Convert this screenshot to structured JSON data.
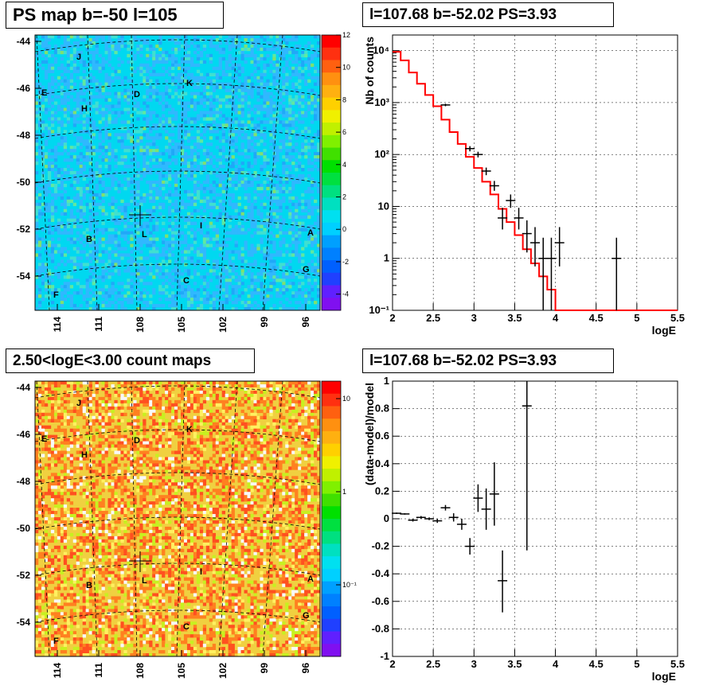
{
  "panels": {
    "tl": {
      "title": "PS map b=-50 l=105"
    },
    "tr": {
      "title": "l=107.68 b=-52.02 PS=3.93"
    },
    "bl": {
      "title": "2.50<logE<3.00 count maps"
    },
    "br": {
      "title": "l=107.68 b=-52.02 PS=3.93"
    }
  },
  "chart_data": [
    {
      "type": "heatmap",
      "title": "PS map b=-50 l=105",
      "xticks": [
        "114",
        "111",
        "108",
        "105",
        "102",
        "99",
        "96"
      ],
      "yticks": [
        "-44",
        "-46",
        "-48",
        "-50",
        "-52",
        "-54"
      ],
      "colorbar_ticks": [
        "12",
        "10",
        "8",
        "6",
        "4",
        "2",
        "0",
        "-2",
        "-4"
      ],
      "colorbar_range": [
        -5,
        12
      ],
      "source_labels": [
        "J",
        "E",
        "D",
        "K",
        "H",
        "B",
        "L",
        "I",
        "A",
        "G",
        "C",
        "F"
      ],
      "colors": {
        "background": "#00e0f0",
        "accent": "#40c0ff"
      }
    },
    {
      "type": "line",
      "title": "l=107.68 b=-52.02 PS=3.93",
      "xlabel": "logE",
      "ylabel": "Nb of counts",
      "xlim": [
        2,
        5.5
      ],
      "ylim": [
        0.1,
        20000
      ],
      "log_y": true,
      "xticks": [
        "2",
        "2.5",
        "3",
        "3.5",
        "4",
        "4.5",
        "5",
        "5.5"
      ],
      "yticks": [
        "10⁻¹",
        "1",
        "10",
        "10²",
        "10³",
        "10⁴"
      ],
      "grid": true,
      "series": [
        {
          "style": "histogram",
          "color": "#ff0000",
          "x": [
            2.0,
            2.1,
            2.2,
            2.3,
            2.4,
            2.5,
            2.6,
            2.7,
            2.8,
            2.9,
            3.0,
            3.1,
            3.2,
            3.3,
            3.4,
            3.5,
            3.6,
            3.7,
            3.8,
            3.9,
            4.0,
            4.1,
            4.2,
            4.3,
            4.4,
            4.5,
            4.6,
            4.7,
            4.8,
            4.9,
            5.0,
            5.1,
            5.2,
            5.3,
            5.4
          ],
          "values": [
            9500,
            6500,
            3800,
            2300,
            1400,
            850,
            470,
            270,
            160,
            90,
            55,
            30,
            17,
            9,
            5,
            2.8,
            1.5,
            0.8,
            0.45,
            0.25,
            0.1,
            0.1,
            0.1,
            0.1,
            0.1,
            0.1,
            0.1,
            0.1,
            0.1,
            0.1,
            0.1,
            0.1,
            0.1,
            0.1,
            0.1
          ]
        },
        {
          "style": "errorbars",
          "color": "#000000",
          "points": [
            {
              "x": 2.65,
              "y": 900,
              "lo": 850,
              "hi": 950
            },
            {
              "x": 2.95,
              "y": 130,
              "lo": 115,
              "hi": 145
            },
            {
              "x": 3.05,
              "y": 100,
              "lo": 88,
              "hi": 113
            },
            {
              "x": 3.15,
              "y": 48,
              "lo": 40,
              "hi": 56
            },
            {
              "x": 3.25,
              "y": 25,
              "lo": 20,
              "hi": 31
            },
            {
              "x": 3.35,
              "y": 6,
              "lo": 3.6,
              "hi": 9.4
            },
            {
              "x": 3.45,
              "y": 13,
              "lo": 9.4,
              "hi": 17
            },
            {
              "x": 3.55,
              "y": 6,
              "lo": 3.6,
              "hi": 9.4
            },
            {
              "x": 3.65,
              "y": 3,
              "lo": 1.3,
              "hi": 5.4
            },
            {
              "x": 3.75,
              "y": 2,
              "lo": 0.7,
              "hi": 4.0
            },
            {
              "x": 3.85,
              "y": 1,
              "lo": 0.1,
              "hi": 2.5
            },
            {
              "x": 3.95,
              "y": 1,
              "lo": 0.1,
              "hi": 2.5
            },
            {
              "x": 4.05,
              "y": 2,
              "lo": 0.7,
              "hi": 4.0
            },
            {
              "x": 4.75,
              "y": 1,
              "lo": 0.1,
              "hi": 2.5
            }
          ]
        }
      ]
    },
    {
      "type": "heatmap",
      "title": "2.50<logE<3.00 count maps",
      "xticks": [
        "114",
        "111",
        "108",
        "105",
        "102",
        "99",
        "96"
      ],
      "yticks": [
        "-44",
        "-46",
        "-48",
        "-50",
        "-52",
        "-54"
      ],
      "colorbar_ticks": [
        "10",
        "1",
        "10⁻¹"
      ],
      "colorbar_log": true,
      "source_labels": [
        "J",
        "E",
        "D",
        "K",
        "H",
        "B",
        "L",
        "I",
        "A",
        "G",
        "C",
        "F"
      ],
      "colors": {
        "background": "#f0d040",
        "accent": "#ff5020"
      }
    },
    {
      "type": "scatter",
      "title": "l=107.68 b=-52.02 PS=3.93",
      "xlabel": "logE",
      "ylabel": "(data-model)/model",
      "xlim": [
        2,
        5.5
      ],
      "ylim": [
        -1,
        1
      ],
      "xticks": [
        "2",
        "2.5",
        "3",
        "3.5",
        "4",
        "4.5",
        "5",
        "5.5"
      ],
      "yticks": [
        "-1",
        "-0.8",
        "-0.6",
        "-0.4",
        "-0.2",
        "0",
        "0.2",
        "0.4",
        "0.6",
        "0.8",
        "1"
      ],
      "grid": true,
      "points": [
        {
          "x": 2.05,
          "y": 0.04,
          "lo": 0.035,
          "hi": 0.045
        },
        {
          "x": 2.15,
          "y": 0.035,
          "lo": 0.03,
          "hi": 0.04
        },
        {
          "x": 2.25,
          "y": -0.01,
          "lo": -0.02,
          "hi": 0.0
        },
        {
          "x": 2.35,
          "y": 0.01,
          "lo": 0.0,
          "hi": 0.02
        },
        {
          "x": 2.45,
          "y": 0.0,
          "lo": -0.01,
          "hi": 0.01
        },
        {
          "x": 2.55,
          "y": -0.015,
          "lo": -0.03,
          "hi": 0.0
        },
        {
          "x": 2.65,
          "y": 0.08,
          "lo": 0.06,
          "hi": 0.1
        },
        {
          "x": 2.75,
          "y": 0.01,
          "lo": -0.02,
          "hi": 0.04
        },
        {
          "x": 2.85,
          "y": -0.04,
          "lo": -0.08,
          "hi": 0.0
        },
        {
          "x": 2.95,
          "y": -0.2,
          "lo": -0.26,
          "hi": -0.14
        },
        {
          "x": 3.05,
          "y": 0.15,
          "lo": 0.05,
          "hi": 0.25
        },
        {
          "x": 3.15,
          "y": 0.07,
          "lo": -0.08,
          "hi": 0.22
        },
        {
          "x": 3.25,
          "y": 0.18,
          "lo": -0.05,
          "hi": 0.41
        },
        {
          "x": 3.35,
          "y": -0.45,
          "lo": -0.68,
          "hi": -0.23
        },
        {
          "x": 3.65,
          "y": 0.82,
          "lo": -0.23,
          "hi": 1.0
        }
      ]
    }
  ]
}
